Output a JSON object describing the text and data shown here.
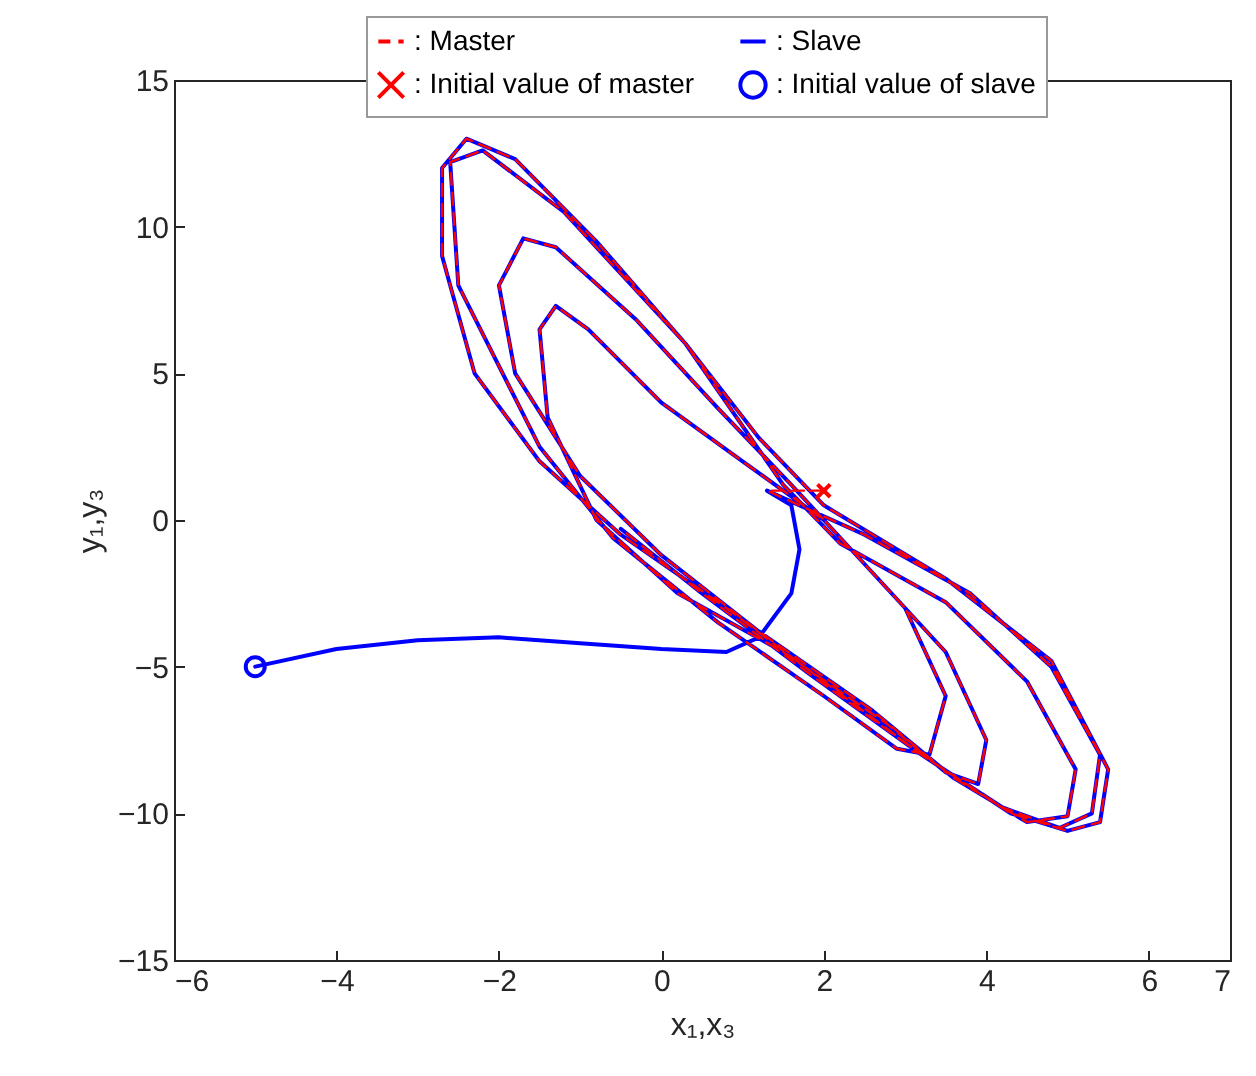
{
  "chart_data": {
    "type": "line",
    "xlabel": "x₁,x₃",
    "ylabel": "y₁,y₃",
    "xlim": [
      -6,
      7
    ],
    "ylim": [
      -15,
      15
    ],
    "xticks": [
      -6,
      -4,
      -2,
      0,
      2,
      4,
      6,
      7
    ],
    "yticks": [
      -15,
      -10,
      -5,
      0,
      5,
      10,
      15
    ],
    "grid": false,
    "legend": "top",
    "series": [
      {
        "name": ": Master",
        "color": "#ff0000",
        "line_style": "dashed",
        "x": [
          2,
          1.7,
          1.3,
          2.5,
          3.8,
          4.8,
          5.4,
          5.3,
          4.9,
          4.2,
          3.2,
          2,
          0.8,
          -0.5,
          -1.5,
          -2.3,
          -2.7,
          -2.7,
          -2.4,
          -1.8,
          -0.8,
          0.3,
          1,
          1.5,
          2.2,
          3.5,
          4.5,
          5.1,
          5,
          4.5,
          3.6,
          2.6,
          1.2,
          0,
          -1,
          -1.8,
          -2,
          -1.7,
          -1.3,
          -0.3,
          0.7,
          1.6,
          2.5,
          3.5,
          4,
          3.9,
          3.5,
          2.8,
          1.5,
          0.2,
          -0.8,
          -1.4,
          -1.5,
          -1.3,
          -0.9,
          0,
          1,
          2,
          3,
          3.5,
          3.3,
          2.9,
          2,
          0.7,
          -0.6,
          -1.5,
          -2.5,
          -2.6,
          -2.2,
          -1.2,
          0.3,
          1.2,
          2,
          3.5,
          4.8,
          5.5,
          5.4,
          5,
          4.3,
          3.2,
          1.8,
          0.5,
          -0.5
        ],
        "values": [
          1,
          1,
          1,
          -0.5,
          -2.5,
          -5,
          -8,
          -10,
          -10.5,
          -9.8,
          -8,
          -5.5,
          -3,
          -0.5,
          2,
          5,
          9,
          12,
          13,
          12.3,
          9.5,
          6,
          3.2,
          1.2,
          -0.8,
          -2.8,
          -5.5,
          -8.5,
          -10.1,
          -10.3,
          -8.8,
          -6.5,
          -3.8,
          -1.2,
          1.5,
          5,
          8,
          9.6,
          9.3,
          6.8,
          3.8,
          1.2,
          -1.5,
          -4.5,
          -7.5,
          -9,
          -8.6,
          -7,
          -4.5,
          -2.5,
          0,
          3.5,
          6.5,
          7.3,
          6.5,
          4,
          2,
          0,
          -3,
          -6,
          -8,
          -7.8,
          -6,
          -3.5,
          -0.6,
          2.5,
          8,
          12.2,
          12.6,
          10.5,
          6,
          2.8,
          0.5,
          -2,
          -4.8,
          -8.5,
          -10.3,
          -10.6,
          -10,
          -8,
          -5.2,
          -2.5,
          -0.3
        ]
      },
      {
        "name": ": Initial value of master",
        "type": "scatter",
        "marker": "cross",
        "color": "#ff0000",
        "x": [
          2
        ],
        "values": [
          1
        ]
      },
      {
        "name": ": Slave",
        "color": "#0000ff",
        "line_style": "solid",
        "x": [
          -5,
          -4,
          -3,
          -2,
          -1,
          0,
          0.8,
          1.2,
          1.6,
          1.7,
          1.6,
          1.3,
          2.5,
          3.8,
          4.8,
          5.4,
          5.3,
          4.9,
          4.2,
          3.2,
          2,
          0.8,
          -0.5,
          -1.5,
          -2.3,
          -2.7,
          -2.7,
          -2.4,
          -1.8,
          -0.8,
          0.3,
          1,
          1.5,
          2.2,
          3.5,
          4.5,
          5.1,
          5,
          4.5,
          3.6,
          2.6,
          1.2,
          0,
          -1,
          -1.8,
          -2,
          -1.7,
          -1.3,
          -0.3,
          0.7,
          1.6,
          2.5,
          3.5,
          4,
          3.9,
          3.5,
          2.8,
          1.5,
          0.2,
          -0.8,
          -1.4,
          -1.5,
          -1.3,
          -0.9,
          0,
          1,
          2,
          3,
          3.5,
          3.3,
          2.9,
          2,
          0.7,
          -0.6,
          -1.5,
          -2.5,
          -2.6,
          -2.2,
          -1.2,
          0.3,
          1.2,
          2,
          3.5,
          4.8,
          5.5,
          5.4,
          5,
          4.3,
          3.2,
          1.8,
          0.5,
          -0.5
        ],
        "values": [
          -5,
          -4.4,
          -4.1,
          -4,
          -4.2,
          -4.4,
          -4.5,
          -4,
          -2.5,
          -1,
          0.5,
          1,
          -0.5,
          -2.5,
          -5,
          -8,
          -10,
          -10.5,
          -9.8,
          -8,
          -5.5,
          -3,
          -0.5,
          2,
          5,
          9,
          12,
          13,
          12.3,
          9.5,
          6,
          3.2,
          1.2,
          -0.8,
          -2.8,
          -5.5,
          -8.5,
          -10.1,
          -10.3,
          -8.8,
          -6.5,
          -3.8,
          -1.2,
          1.5,
          5,
          8,
          9.6,
          9.3,
          6.8,
          3.8,
          1.2,
          -1.5,
          -4.5,
          -7.5,
          -9,
          -8.6,
          -7,
          -4.5,
          -2.5,
          0,
          3.5,
          6.5,
          7.3,
          6.5,
          4,
          2,
          0,
          -3,
          -6,
          -8,
          -7.8,
          -6,
          -3.5,
          -0.6,
          2.5,
          8,
          12.2,
          12.6,
          10.5,
          6,
          2.8,
          0.5,
          -2,
          -4.8,
          -8.5,
          -10.3,
          -10.6,
          -10,
          -8,
          -5.2,
          -2.5,
          -0.3
        ]
      },
      {
        "name": ": Initial value of slave",
        "type": "scatter",
        "marker": "circle",
        "color": "#0000ff",
        "x": [
          -5
        ],
        "values": [
          -5
        ]
      }
    ]
  }
}
